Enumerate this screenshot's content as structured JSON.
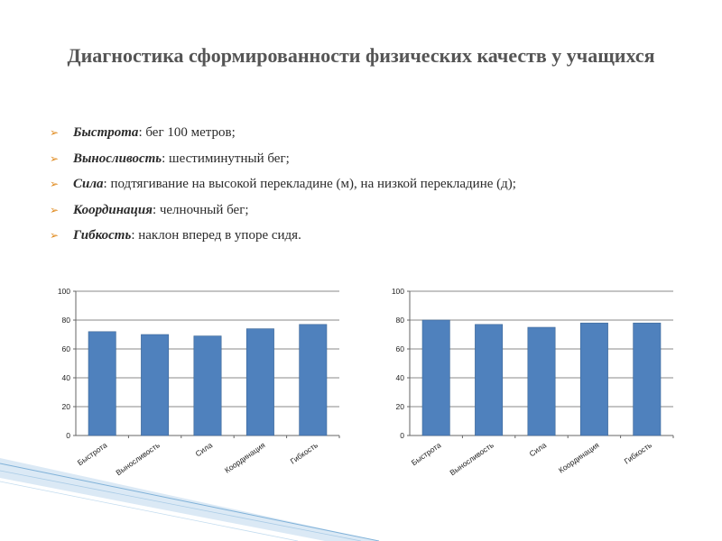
{
  "slide": {
    "title": "Диагностика сформированности физических качеств у учащихся",
    "bullets": [
      {
        "term": "Быстрота",
        "rest": ": бег 100 метров;"
      },
      {
        "term": "Выносливость",
        "rest": ": шестиминутный бег;"
      },
      {
        "term": "Сила",
        "rest": ": подтягивание на высокой перекладине (м), на низкой перекладине (д);"
      },
      {
        "term": "Координация",
        "rest": ": челночный бег;"
      },
      {
        "term": "Гибкость",
        "rest": ": наклон вперед в упоре сидя."
      }
    ],
    "bullet_icon": "arrow-bullet-icon",
    "accent_color": "#e08a1e"
  },
  "chart_data": [
    {
      "type": "bar",
      "title": "",
      "xlabel": "",
      "ylabel": "",
      "categories": [
        "Быстрота",
        "Выносливость",
        "Сила",
        "Координация",
        "Гибкость"
      ],
      "values": [
        72,
        70,
        69,
        74,
        77
      ],
      "ylim": [
        0,
        100
      ],
      "yticks": [
        0,
        20,
        40,
        60,
        80,
        100
      ],
      "grid": true,
      "legend": "none",
      "bar_color": "#4f81bd"
    },
    {
      "type": "bar",
      "title": "",
      "xlabel": "",
      "ylabel": "",
      "categories": [
        "Быстрота",
        "Выносливость",
        "Сила",
        "Координация",
        "Гибкость"
      ],
      "values": [
        80,
        77,
        75,
        78,
        78
      ],
      "ylim": [
        0,
        100
      ],
      "yticks": [
        0,
        20,
        40,
        60,
        80,
        100
      ],
      "grid": true,
      "legend": "none",
      "bar_color": "#4f81bd"
    }
  ]
}
